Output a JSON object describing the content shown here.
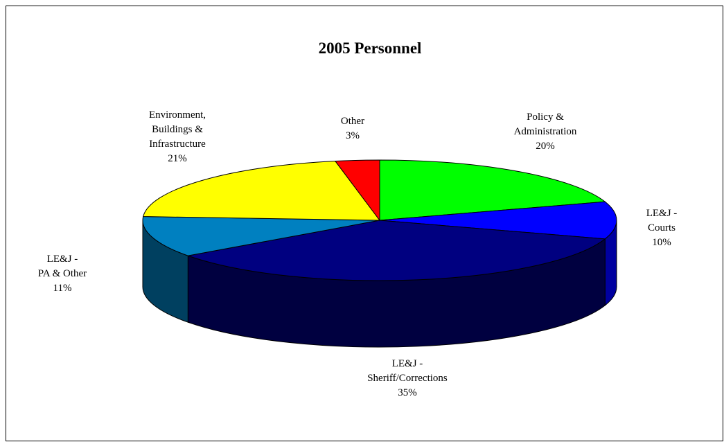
{
  "chart_data": {
    "type": "pie",
    "title": "2005 Personnel",
    "three_d": true,
    "start_angle_deg": 0,
    "direction": "clockwise",
    "slices": [
      {
        "label_lines": [
          "Policy &",
          "Administration"
        ],
        "value": 20,
        "value_label": "20%",
        "color": "#00ff00",
        "side_color": "#00aa00"
      },
      {
        "label_lines": [
          "LE&J -",
          "Courts"
        ],
        "value": 10,
        "value_label": "10%",
        "color": "#0000ff",
        "side_color": "#0000a0"
      },
      {
        "label_lines": [
          "LE&J -",
          "Sheriff/Corrections"
        ],
        "value": 35,
        "value_label": "35%",
        "color": "#000080",
        "side_color": "#000040"
      },
      {
        "label_lines": [
          "LE&J -",
          "PA & Other"
        ],
        "value": 11,
        "value_label": "11%",
        "color": "#0080c0",
        "side_color": "#004060"
      },
      {
        "label_lines": [
          "Environment,",
          "Buildings &",
          "Infrastructure"
        ],
        "value": 21,
        "value_label": "21%",
        "color": "#ffff00",
        "side_color": "#a0a000"
      },
      {
        "label_lines": [
          "Other"
        ],
        "value": 3,
        "value_label": "3%",
        "color": "#ff0000",
        "side_color": "#a00000"
      }
    ]
  }
}
